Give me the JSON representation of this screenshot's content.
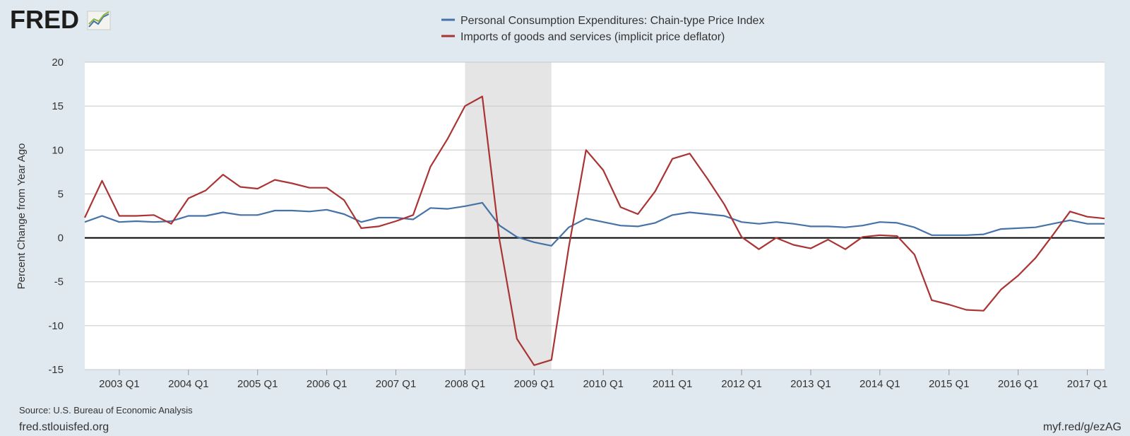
{
  "logo": {
    "text": "FRED"
  },
  "footer": {
    "source": "Source: U.S. Bureau of Economic Analysis",
    "site": "fred.stlouisfed.org",
    "short_url": "myf.red/g/ezAG"
  },
  "colors": {
    "background": "#e1e9f0",
    "plot_area": "#ffffff",
    "recession": "#e5e5e5",
    "pce": "#4572a7",
    "imports": "#aa3333",
    "grid": "#c8c8c8",
    "zero_line": "#000000"
  },
  "chart_data": {
    "type": "line",
    "ylabel": "Percent Change from Year Ago",
    "ylim": [
      -15,
      20
    ],
    "yticks": [
      -15,
      -10,
      -5,
      0,
      5,
      10,
      15,
      20
    ],
    "xlim": [
      "2002 Q3",
      "2017 Q2"
    ],
    "x_tick_labels": [
      "2003 Q1",
      "2004 Q1",
      "2005 Q1",
      "2006 Q1",
      "2007 Q1",
      "2008 Q1",
      "2009 Q1",
      "2010 Q1",
      "2011 Q1",
      "2012 Q1",
      "2013 Q1",
      "2014 Q1",
      "2015 Q1",
      "2016 Q1",
      "2017 Q1"
    ],
    "grid": true,
    "legend_position": "top-center",
    "recession_shading": [
      {
        "start": "2008 Q1",
        "end": "2009 Q2"
      }
    ],
    "x": [
      "2002 Q3",
      "2002 Q4",
      "2003 Q1",
      "2003 Q2",
      "2003 Q3",
      "2003 Q4",
      "2004 Q1",
      "2004 Q2",
      "2004 Q3",
      "2004 Q4",
      "2005 Q1",
      "2005 Q2",
      "2005 Q3",
      "2005 Q4",
      "2006 Q1",
      "2006 Q2",
      "2006 Q3",
      "2006 Q4",
      "2007 Q1",
      "2007 Q2",
      "2007 Q3",
      "2007 Q4",
      "2008 Q1",
      "2008 Q2",
      "2008 Q3",
      "2008 Q4",
      "2009 Q1",
      "2009 Q2",
      "2009 Q3",
      "2009 Q4",
      "2010 Q1",
      "2010 Q2",
      "2010 Q3",
      "2010 Q4",
      "2011 Q1",
      "2011 Q2",
      "2011 Q3",
      "2011 Q4",
      "2012 Q1",
      "2012 Q2",
      "2012 Q3",
      "2012 Q4",
      "2013 Q1",
      "2013 Q2",
      "2013 Q3",
      "2013 Q4",
      "2014 Q1",
      "2014 Q2",
      "2014 Q3",
      "2014 Q4",
      "2015 Q1",
      "2015 Q2",
      "2015 Q3",
      "2015 Q4",
      "2016 Q1",
      "2016 Q2",
      "2016 Q3",
      "2016 Q4",
      "2017 Q1",
      "2017 Q2"
    ],
    "series": [
      {
        "name": "Personal Consumption Expenditures: Chain-type Price Index",
        "color": "#4572a7",
        "values": [
          1.8,
          2.5,
          1.8,
          1.9,
          1.8,
          1.9,
          2.5,
          2.5,
          2.9,
          2.6,
          2.6,
          3.1,
          3.1,
          3.0,
          3.2,
          2.7,
          1.8,
          2.3,
          2.3,
          2.1,
          3.4,
          3.3,
          3.6,
          4.0,
          1.4,
          0.1,
          -0.5,
          -0.9,
          1.2,
          2.2,
          1.8,
          1.4,
          1.3,
          1.7,
          2.6,
          2.9,
          2.7,
          2.5,
          1.8,
          1.6,
          1.8,
          1.6,
          1.3,
          1.3,
          1.2,
          1.4,
          1.8,
          1.7,
          1.2,
          0.3,
          0.3,
          0.3,
          0.4,
          1.0,
          1.1,
          1.2,
          1.6,
          2.0,
          1.6,
          1.6
        ]
      },
      {
        "name": "Imports of goods and services (implicit price deflator)",
        "color": "#aa3333",
        "values": [
          2.3,
          6.5,
          2.5,
          2.5,
          2.6,
          1.6,
          4.5,
          5.4,
          7.2,
          5.8,
          5.6,
          6.6,
          6.2,
          5.7,
          5.7,
          4.3,
          1.1,
          1.3,
          1.9,
          2.6,
          8.1,
          11.3,
          15.0,
          16.1,
          -0.3,
          -11.5,
          -14.5,
          -13.9,
          -1.1,
          10.0,
          7.7,
          3.5,
          2.7,
          5.3,
          9.0,
          9.6,
          6.8,
          3.8,
          0.1,
          -1.3,
          0.0,
          -0.8,
          -1.2,
          -0.2,
          -1.3,
          0.1,
          0.3,
          0.2,
          -1.9,
          -7.1,
          -7.6,
          -8.2,
          -8.3,
          -5.9,
          -4.3,
          -2.3,
          0.3,
          3.0,
          2.4,
          2.2
        ]
      }
    ]
  }
}
